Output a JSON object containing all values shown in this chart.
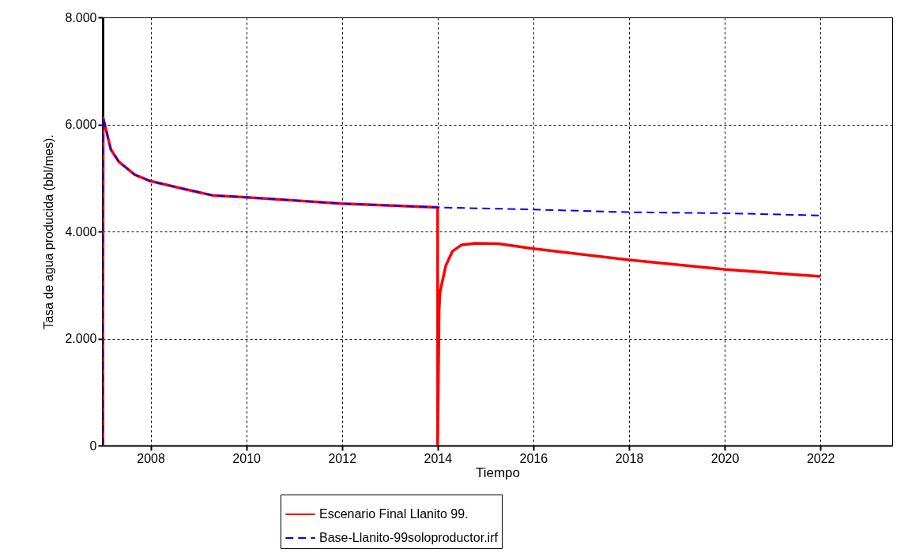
{
  "chart_data": {
    "type": "line",
    "xlabel": "Tiempo",
    "ylabel": "Tasa de agua producida (bbl/mes).",
    "xlim": [
      2007,
      2023.5
    ],
    "xticks": [
      2008,
      2010,
      2012,
      2014,
      2016,
      2018,
      2020,
      2022
    ],
    "ylim": [
      0,
      8000
    ],
    "yticks": [
      0,
      {
        "value": 2000,
        "label": "2.000"
      },
      {
        "value": 4000,
        "label": "4.000"
      },
      {
        "value": 6000,
        "label": "6.000"
      },
      {
        "value": 8000,
        "label": "8.000"
      }
    ],
    "grid": true,
    "legend": "bottom",
    "marker": "none",
    "series": [
      {
        "name": "Escenario Final Llanito 99.",
        "color": "#ff0000",
        "line_style": "solid",
        "x": [
          2007,
          2007.01,
          2007.17,
          2007.34,
          2007.67,
          2008,
          2008.72,
          2009.32,
          2010,
          2012,
          2014,
          2014,
          2014.03,
          2014.05,
          2014.17,
          2014.31,
          2014.5,
          2014.78,
          2015.27,
          2016,
          2018,
          2020,
          2022
        ],
        "values": [
          0,
          6120,
          5530,
          5300,
          5060,
          4940,
          4790,
          4670,
          4640,
          4520,
          4450,
          0,
          2520,
          2870,
          3360,
          3630,
          3750,
          3780,
          3770,
          3680,
          3470,
          3290,
          3160
        ]
      },
      {
        "name": "Base-Llanito-99soloproductor.irf",
        "color": "#0000ff",
        "line_style": "dashed",
        "x": [
          2007,
          2007.01,
          2007.17,
          2007.34,
          2007.67,
          2008,
          2008.72,
          2009.32,
          2010,
          2012,
          2014,
          2016,
          2018,
          2020,
          2022
        ],
        "values": [
          0,
          6120,
          5530,
          5300,
          5060,
          4940,
          4790,
          4670,
          4640,
          4520,
          4450,
          4410,
          4360,
          4340,
          4300
        ]
      }
    ]
  }
}
